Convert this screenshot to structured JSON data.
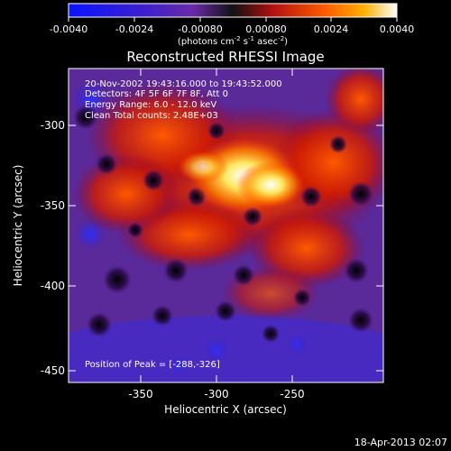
{
  "colorbar": {
    "tick_labels": [
      "-0.0040",
      "-0.0024",
      "-0.00080",
      "0.00080",
      "0.0024",
      "0.0040"
    ],
    "unit_main": "(photons cm",
    "unit_exp1": "-2",
    "unit_mid": " s",
    "unit_exp2": "-1",
    "unit_tail": " asec",
    "unit_exp3": "-2",
    "unit_close": ")",
    "range": [
      -0.004,
      0.004
    ]
  },
  "title": "Reconstructed RHESSI Image",
  "info": {
    "line1": "20-Nov-2002 19:43:16.000 to 19:43:52.000",
    "line2": "Detectors: 4F 5F 6F 7F 8F, Att 0",
    "line3": "Energy Range: 6.0 - 12.0 keV",
    "line4": "Clean     Total counts: 2.48E+03",
    "peak": "Position of Peak = [-288,-326]"
  },
  "axes": {
    "xlabel": "Heliocentric X (arcsec)",
    "ylabel": "Heliocentric Y (arcsec)",
    "x_ticks": [
      "-350",
      "-300",
      "-250"
    ],
    "y_ticks": [
      "-300",
      "-350",
      "-400",
      "-450"
    ],
    "xlim": [
      -392,
      -205
    ],
    "ylim": [
      -454,
      -270
    ]
  },
  "timestamp": "18-Apr-2013 02:07"
}
